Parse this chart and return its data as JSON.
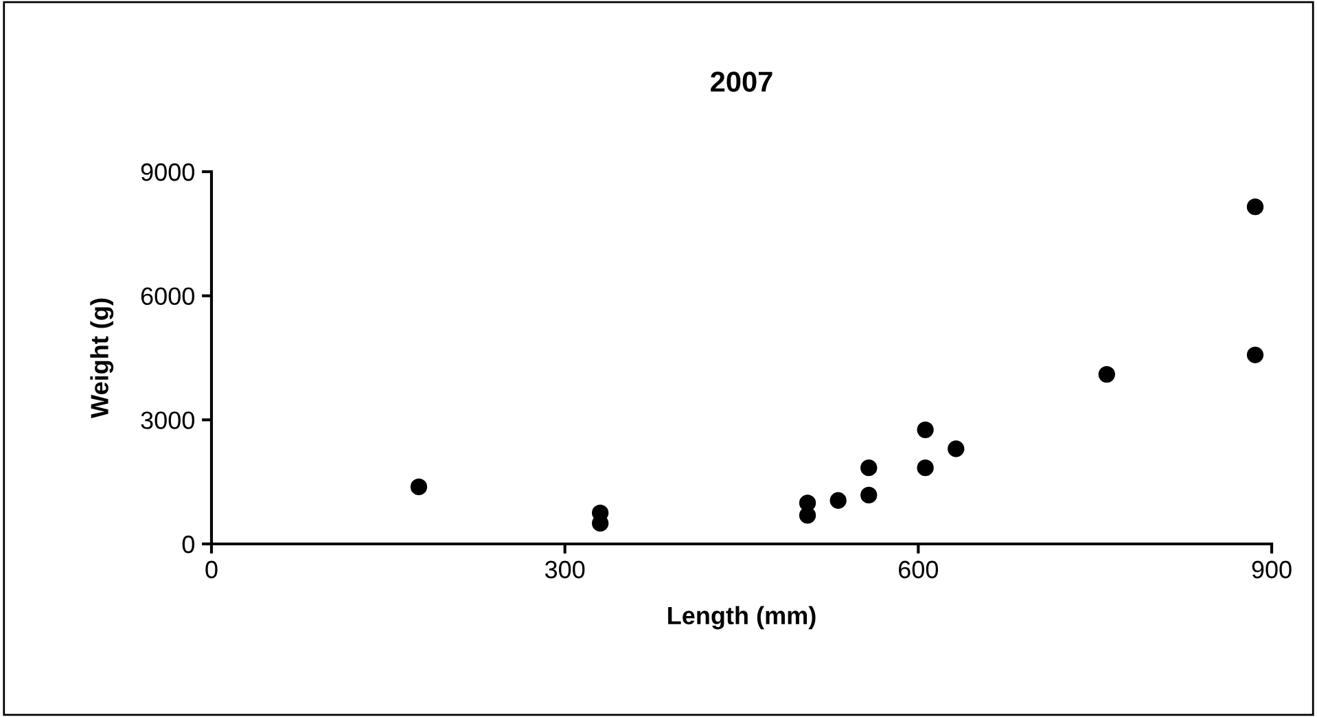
{
  "chart_data": {
    "type": "scatter",
    "title": "2007",
    "xlabel": "Length (mm)",
    "ylabel": "Weight (g)",
    "x": [
      176,
      330,
      330,
      506,
      506,
      532,
      558,
      558,
      606,
      606,
      632,
      760,
      886,
      886
    ],
    "values": [
      1380,
      750,
      500,
      990,
      690,
      1050,
      1840,
      1180,
      2760,
      1840,
      2300,
      4100,
      8150,
      4570
    ],
    "color": "#000000",
    "marker": "circle",
    "xlim": [
      0,
      900
    ],
    "xticks": [
      0,
      300,
      600,
      900
    ],
    "ylim": [
      0,
      9000
    ],
    "yticks": [
      0,
      3000,
      6000,
      9000
    ],
    "grid": false,
    "legend": false
  }
}
